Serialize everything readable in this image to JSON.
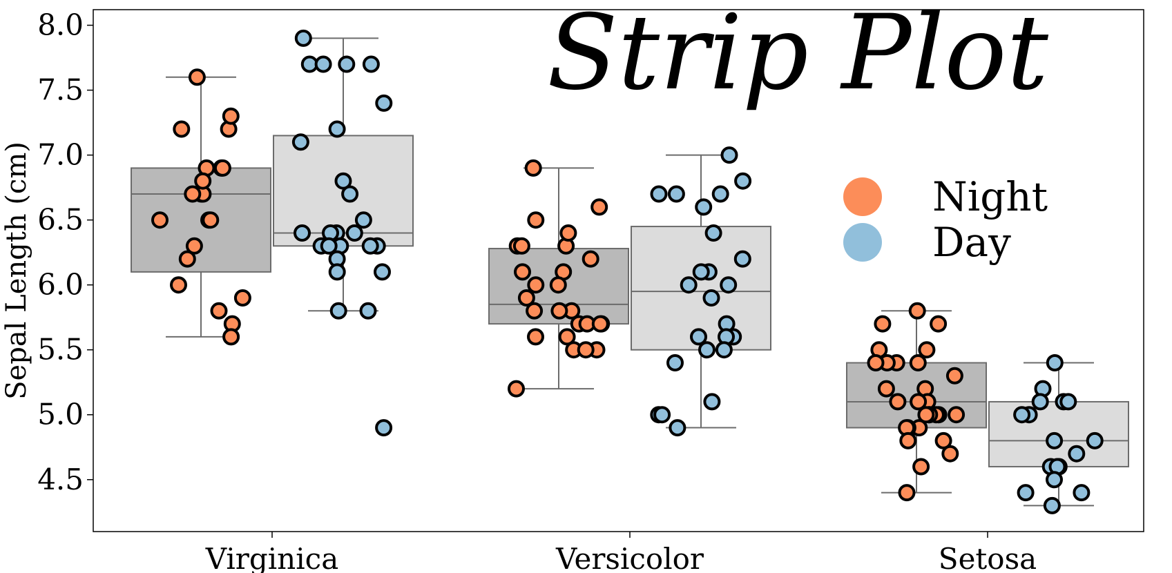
{
  "chart_data": {
    "type": "box-strip",
    "title": "Strip Plot",
    "xlabel": "",
    "ylabel": "Sepal Length (cm)",
    "ylim": [
      4.1,
      8.12
    ],
    "yticks": [
      "4.5",
      "5.0",
      "5.5",
      "6.0",
      "6.5",
      "7.0",
      "7.5",
      "8.0"
    ],
    "categories": [
      "Virginica",
      "Versicolor",
      "Setosa"
    ],
    "grid": false,
    "legend_position": "right",
    "series": [
      {
        "name": "Night",
        "color": "#fc8d59",
        "box_color": "#b9b9b9",
        "boxes": [
          {
            "whisker_low": 5.6,
            "q1": 6.1,
            "median": 6.7,
            "q3": 6.9,
            "whisker_high": 7.6
          },
          {
            "whisker_low": 5.2,
            "q1": 5.7,
            "median": 5.85,
            "q3": 6.28,
            "whisker_high": 6.9
          },
          {
            "whisker_low": 4.4,
            "q1": 4.9,
            "median": 5.1,
            "q3": 5.4,
            "whisker_high": 5.8
          }
        ],
        "points": [
          [
            6.9,
            6.9,
            7.6,
            7.2,
            7.2,
            6.9,
            6.7,
            6.7,
            6.8,
            6.5,
            6.5,
            6.5,
            6.7,
            7.3,
            6.2,
            6.3,
            6.0,
            5.9,
            5.8,
            5.7,
            5.6
          ],
          [
            6.6,
            6.9,
            6.5,
            6.3,
            6.3,
            6.3,
            6.2,
            6.1,
            6.1,
            6.4,
            6.0,
            6.0,
            5.9,
            5.8,
            5.8,
            5.8,
            5.7,
            5.7,
            5.7,
            5.7,
            5.6,
            5.6,
            5.5,
            5.5,
            5.5,
            5.2
          ],
          [
            5.7,
            5.4,
            5.4,
            5.8,
            5.7,
            5.5,
            5.5,
            5.4,
            5.4,
            5.2,
            5.2,
            5.1,
            5.1,
            5.1,
            5.3,
            5.0,
            5.0,
            5.0,
            5.0,
            5.0,
            5.0,
            4.9,
            4.9,
            4.9,
            4.8,
            4.8,
            4.7,
            4.6,
            4.4
          ]
        ]
      },
      {
        "name": "Day",
        "color": "#91bfdb",
        "box_color": "#dcdcdc",
        "boxes": [
          {
            "whisker_low": 5.8,
            "q1": 6.3,
            "median": 6.4,
            "q3": 7.15,
            "whisker_high": 7.9
          },
          {
            "whisker_low": 4.9,
            "q1": 5.5,
            "median": 5.95,
            "q3": 6.45,
            "whisker_high": 7.0
          },
          {
            "whisker_low": 4.3,
            "q1": 4.6,
            "median": 4.8,
            "q3": 5.1,
            "whisker_high": 5.4
          }
        ],
        "points": [
          [
            7.7,
            7.7,
            7.9,
            7.7,
            7.7,
            7.4,
            7.2,
            7.1,
            6.8,
            6.7,
            6.5,
            6.4,
            6.4,
            6.4,
            6.4,
            6.3,
            6.3,
            6.3,
            6.3,
            6.3,
            6.2,
            6.1,
            6.1,
            5.8,
            5.8,
            4.9
          ],
          [
            6.7,
            6.7,
            6.7,
            7.0,
            6.8,
            6.6,
            6.4,
            6.2,
            6.1,
            6.1,
            6.0,
            6.0,
            5.9,
            5.7,
            5.6,
            5.6,
            5.6,
            5.5,
            5.5,
            5.4,
            5.1,
            5.0,
            5.0,
            4.9
          ],
          [
            5.4,
            5.2,
            5.1,
            5.1,
            5.1,
            5.0,
            5.0,
            4.8,
            4.8,
            4.7,
            4.6,
            4.6,
            4.6,
            4.5,
            4.4,
            4.4,
            4.3
          ]
        ]
      }
    ]
  }
}
